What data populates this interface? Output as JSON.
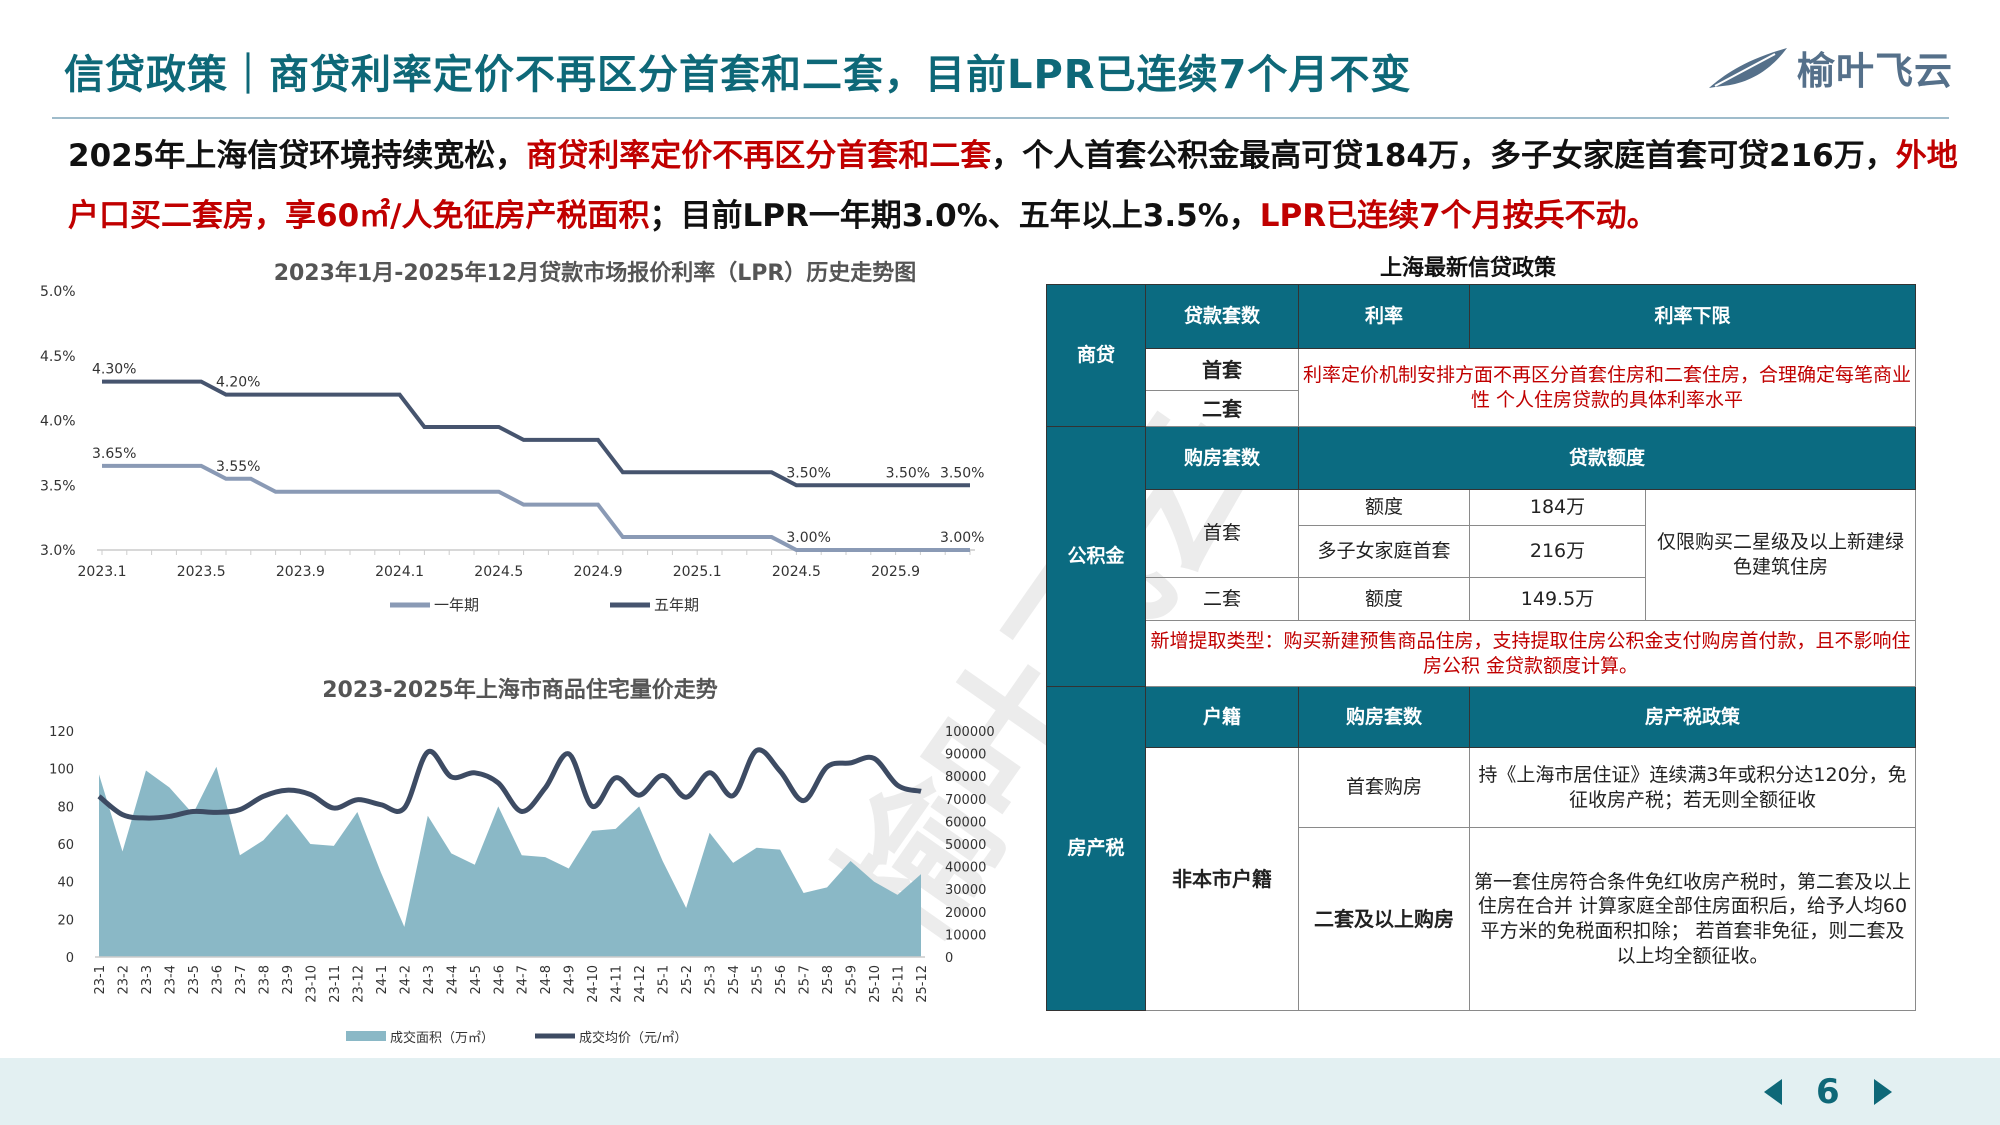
{
  "header": {
    "title": "信贷政策｜商贷利率定价不再区分首套和二套，目前LPR已连续7个月不变",
    "logo_text": "榆叶飞云"
  },
  "summary": {
    "parts": [
      {
        "text": "2025年上海信贷环境持续宽松，",
        "red": false
      },
      {
        "text": "商贷利率定价不再区分首套和二套",
        "red": true
      },
      {
        "text": "，个人首套公积金最高可贷184万，多子女家庭首套可贷216万，",
        "red": false
      },
      {
        "text": "外地户口买二套房，享60㎡/人免征房产税面积",
        "red": true
      },
      {
        "text": "；目前LPR一年期3.0%、五年以上3.5%，",
        "red": false
      },
      {
        "text": "LPR已连续7个月按兵不动。",
        "red": true
      }
    ]
  },
  "colors": {
    "teal": "#0b6b81",
    "red": "#c00000",
    "area": "#8ab8c6",
    "price_line": "#3d4b63",
    "lpr_1y": "#8a9ab5",
    "lpr_5y": "#46546e"
  },
  "chart_data": [
    {
      "type": "line",
      "title": "2023年1月-2025年12月贷款市场报价利率（LPR）历史走势图",
      "x_tick_labels": [
        "2023.1",
        "2023.5",
        "2023.9",
        "2024.1",
        "2024.5",
        "2024.9",
        "2025.1",
        "2024.5",
        "2025.9"
      ],
      "y_ticks": [
        "3.0%",
        "3.5%",
        "4.0%",
        "4.5%",
        "5.0%"
      ],
      "ylim": [
        3.0,
        5.0
      ],
      "legend_position": "bottom",
      "series": [
        {
          "name": "一年期",
          "values": [
            3.65,
            3.65,
            3.65,
            3.65,
            3.65,
            3.55,
            3.55,
            3.45,
            3.45,
            3.45,
            3.45,
            3.45,
            3.45,
            3.45,
            3.45,
            3.45,
            3.45,
            3.35,
            3.35,
            3.35,
            3.35,
            3.1,
            3.1,
            3.1,
            3.1,
            3.1,
            3.1,
            3.1,
            3.0,
            3.0,
            3.0,
            3.0,
            3.0,
            3.0,
            3.0,
            3.0
          ],
          "data_labels": [
            {
              "index": 0,
              "text": "3.65%"
            },
            {
              "index": 5,
              "text": "3.55%"
            },
            {
              "index": 28,
              "text": "3.00%"
            },
            {
              "index": 35,
              "text": "3.00%"
            }
          ]
        },
        {
          "name": "五年期",
          "values": [
            4.3,
            4.3,
            4.3,
            4.3,
            4.3,
            4.2,
            4.2,
            4.2,
            4.2,
            4.2,
            4.2,
            4.2,
            4.2,
            3.95,
            3.95,
            3.95,
            3.95,
            3.85,
            3.85,
            3.85,
            3.85,
            3.6,
            3.6,
            3.6,
            3.6,
            3.6,
            3.6,
            3.6,
            3.5,
            3.5,
            3.5,
            3.5,
            3.5,
            3.5,
            3.5,
            3.5
          ],
          "data_labels": [
            {
              "index": 0,
              "text": "4.30%"
            },
            {
              "index": 5,
              "text": "4.20%"
            },
            {
              "index": 28,
              "text": "3.50%"
            },
            {
              "index": 32,
              "text": "3.50%"
            },
            {
              "index": 35,
              "text": "3.50%"
            }
          ]
        }
      ]
    },
    {
      "type": "area+line",
      "title": "2023-2025年上海市商品住宅量价走势",
      "categories": [
        "23-1",
        "23-2",
        "23-3",
        "23-4",
        "23-5",
        "23-6",
        "23-7",
        "23-8",
        "23-9",
        "23-10",
        "23-11",
        "23-12",
        "24-1",
        "24-2",
        "24-3",
        "24-4",
        "24-5",
        "24-6",
        "24-7",
        "24-8",
        "24-9",
        "24-10",
        "24-11",
        "24-12",
        "25-1",
        "25-2",
        "25-3",
        "25-4",
        "25-5",
        "25-6",
        "25-7",
        "25-8",
        "25-9",
        "25-10",
        "25-11",
        "25-12"
      ],
      "y_left": {
        "lim": [
          0,
          120
        ],
        "ticks": [
          "0",
          "20",
          "40",
          "60",
          "80",
          "100",
          "120"
        ]
      },
      "y_right": {
        "lim": [
          0,
          100000
        ],
        "ticks": [
          "0",
          "10000",
          "20000",
          "30000",
          "40000",
          "50000",
          "60000",
          "70000",
          "80000",
          "90000",
          "100000"
        ]
      },
      "legend_position": "bottom",
      "series": [
        {
          "name": "成交面积（万㎡）",
          "axis": "left",
          "type": "area",
          "values": [
            97,
            56,
            99,
            90,
            76,
            101,
            54,
            62,
            76,
            60,
            59,
            77,
            45,
            16,
            75,
            55,
            49,
            80,
            54,
            53,
            47,
            67,
            68,
            80,
            51,
            26,
            66,
            50,
            58,
            57,
            34,
            37,
            51,
            40,
            33,
            44
          ]
        },
        {
          "name": "成交均价（元/㎡）",
          "axis": "right",
          "type": "line",
          "values": [
            71100,
            63000,
            61500,
            62200,
            64400,
            64000,
            65200,
            71100,
            73800,
            71900,
            65900,
            69600,
            67400,
            65900,
            90700,
            79700,
            81500,
            77000,
            64400,
            74800,
            89900,
            66700,
            79300,
            71600,
            80300,
            70700,
            81500,
            71400,
            91400,
            82200,
            69200,
            84100,
            85900,
            87900,
            76000,
            73300
          ]
        }
      ]
    }
  ],
  "table": {
    "title": "上海最新信贷政策",
    "commercial": {
      "section": "商贷",
      "h1": "贷款套数",
      "h2": "利率",
      "h3": "利率下限",
      "r1": "首套",
      "r2": "二套",
      "note": "利率定价机制安排方面不再区分首套住房和二套住房，合理确定每笔商业性 个人住房贷款的具体利率水平"
    },
    "fund": {
      "section": "公积金",
      "h1": "购房套数",
      "h2": "贷款额度",
      "first": "首套",
      "q1": "额度",
      "v1": "184万",
      "q2": "多子女家庭首套",
      "v2": "216万",
      "second": "二套",
      "q3": "额度",
      "v3": "149.5万",
      "restriction": "仅限购买二星级及以上新建绿色建筑住房",
      "note": "新增提取类型：购买新建预售商品住房，支持提取住房公积金支付购房首付款，且不影响住房公积 金贷款额度计算。"
    },
    "tax": {
      "section": "房产税",
      "h1": "户籍",
      "h2": "购房套数",
      "h3": "房产税政策",
      "hukou": "非本市户籍",
      "t1": "首套购房",
      "p1": "持《上海市居住证》连续满3年或积分达120分，免征收房产税；若无则全额征收",
      "t2": "二套及以上购房",
      "p2": "第一套住房符合条件免红收房产税时，第二套及以上住房在合并 计算家庭全部住房面积后，给予人均60平方米的免税面积扣除； 若首套非免征，则二套及以上均全额征收。"
    }
  },
  "footer": {
    "page": "6"
  }
}
